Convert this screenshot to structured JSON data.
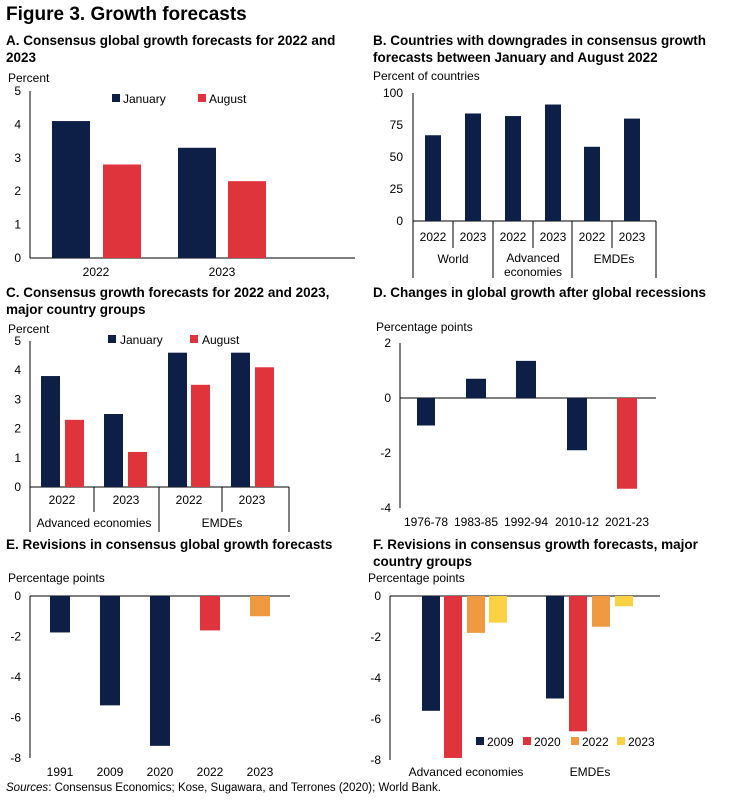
{
  "figure": {
    "title": "Figure 3. Growth forecasts",
    "source_label": "Sources",
    "source_text": ": Consensus Economics; Kose, Sugawara, and Terrones (2020); World Bank."
  },
  "colors": {
    "navy": "#0e1f47",
    "red": "#e0343c",
    "orange": "#ef9a41",
    "yellow": "#fdd144"
  },
  "chart_data": [
    {
      "id": "A",
      "type": "bar",
      "title": "A. Consensus global growth forecasts for 2022 and 2023",
      "ylabel": "Percent",
      "ylim": [
        0,
        5
      ],
      "yticks": [
        "0",
        "1",
        "2",
        "3",
        "4",
        "5"
      ],
      "categories": [
        "2022",
        "2023"
      ],
      "series": [
        {
          "name": "January",
          "color": "navy",
          "values": [
            4.1,
            3.3
          ]
        },
        {
          "name": "August",
          "color": "red",
          "values": [
            2.8,
            2.3
          ]
        }
      ]
    },
    {
      "id": "B",
      "type": "bar",
      "title": "B. Countries with downgrades in consensus growth forecasts between January and August 2022",
      "ylabel": "Percent of countries",
      "ylim": [
        0,
        100
      ],
      "yticks": [
        "0",
        "25",
        "50",
        "75",
        "100"
      ],
      "categories": [
        "2022",
        "2023",
        "2022",
        "2023",
        "2022",
        "2023"
      ],
      "groups": [
        "World",
        "Advanced economies",
        "EMDEs"
      ],
      "series": [
        {
          "name": "",
          "color": "navy",
          "values": [
            67,
            84,
            82,
            91,
            58,
            80
          ]
        }
      ]
    },
    {
      "id": "C",
      "type": "bar",
      "title": "C. Consensus growth forecasts for 2022 and 2023, major country groups",
      "ylabel": "Percent",
      "ylim": [
        0,
        5
      ],
      "yticks": [
        "0",
        "1",
        "2",
        "3",
        "4",
        "5"
      ],
      "categories": [
        "2022",
        "2023",
        "2022",
        "2023"
      ],
      "groups": [
        "Advanced economies",
        "EMDEs"
      ],
      "series": [
        {
          "name": "January",
          "color": "navy",
          "values": [
            3.8,
            2.5,
            4.6,
            4.6
          ]
        },
        {
          "name": "August",
          "color": "red",
          "values": [
            2.3,
            1.2,
            3.5,
            4.1
          ]
        }
      ]
    },
    {
      "id": "D",
      "type": "bar",
      "title": "D. Changes in global growth after global recessions",
      "ylabel": "Percentage points",
      "ylim": [
        -4,
        2
      ],
      "yticks": [
        "-4",
        "-2",
        "0",
        "2"
      ],
      "categories": [
        "1976-78",
        "1983-85",
        "1992-94",
        "2010-12",
        "2021-23"
      ],
      "series": [
        {
          "name": "",
          "values": [
            -1.0,
            0.7,
            1.35,
            -1.9,
            -3.3
          ],
          "colors": [
            "navy",
            "navy",
            "navy",
            "navy",
            "red"
          ]
        }
      ]
    },
    {
      "id": "E",
      "type": "bar",
      "title": "E. Revisions in consensus global growth forecasts",
      "ylabel": "Percentage points",
      "ylim": [
        -8,
        0
      ],
      "yticks": [
        "-8",
        "-6",
        "-4",
        "-2",
        "0"
      ],
      "categories": [
        "1991",
        "2009",
        "2020",
        "2022",
        "2023"
      ],
      "series": [
        {
          "name": "",
          "values": [
            -1.8,
            -5.4,
            -7.4,
            -1.7,
            -1.0
          ],
          "colors": [
            "navy",
            "navy",
            "navy",
            "red",
            "orange"
          ]
        }
      ]
    },
    {
      "id": "F",
      "type": "bar",
      "title": "F. Revisions in consensus growth forecasts, major country groups",
      "ylabel": "Percentage points",
      "ylim": [
        -8,
        0
      ],
      "yticks": [
        "-8",
        "-6",
        "-4",
        "-2",
        "0"
      ],
      "categories": [
        "Advanced economies",
        "EMDEs"
      ],
      "series": [
        {
          "name": "2009",
          "color": "navy",
          "values": [
            -5.6,
            -5.0
          ]
        },
        {
          "name": "2020",
          "color": "red",
          "values": [
            -7.9,
            -6.6
          ]
        },
        {
          "name": "2022",
          "color": "orange",
          "values": [
            -1.8,
            -1.5
          ]
        },
        {
          "name": "2023",
          "color": "yellow",
          "values": [
            -1.3,
            -0.5
          ]
        }
      ]
    }
  ]
}
